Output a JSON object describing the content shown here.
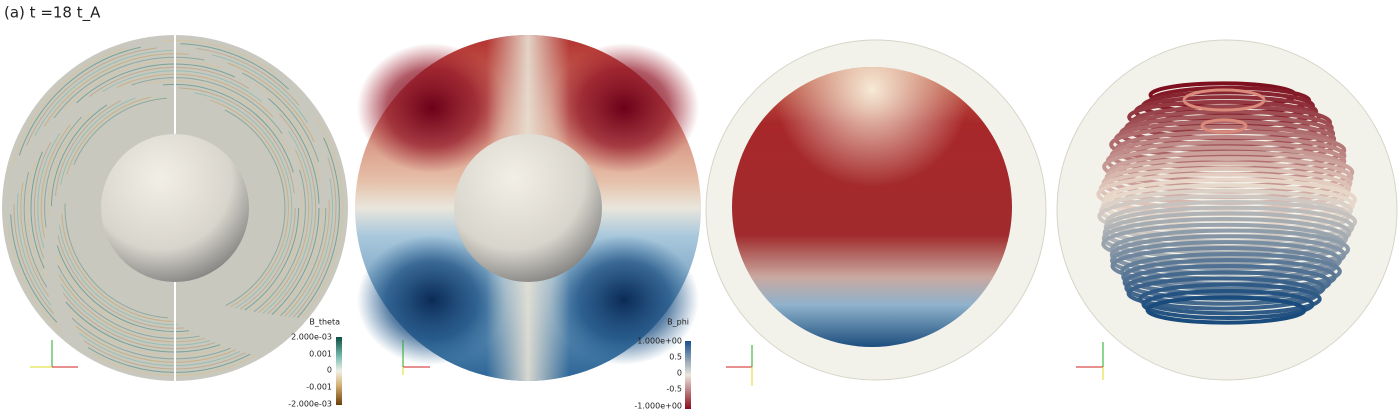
{
  "title": "(a) t =18 t_A",
  "colorbars": [
    {
      "title": "B_theta",
      "ticks": [
        "2.000e-03",
        "0.001",
        "0",
        "-0.001",
        "-2.000e-03"
      ]
    },
    {
      "title": "B_phi",
      "ticks": [
        "1.000e+00",
        "0.5",
        "0",
        "-0.5",
        "-1.000e+00"
      ]
    }
  ]
}
